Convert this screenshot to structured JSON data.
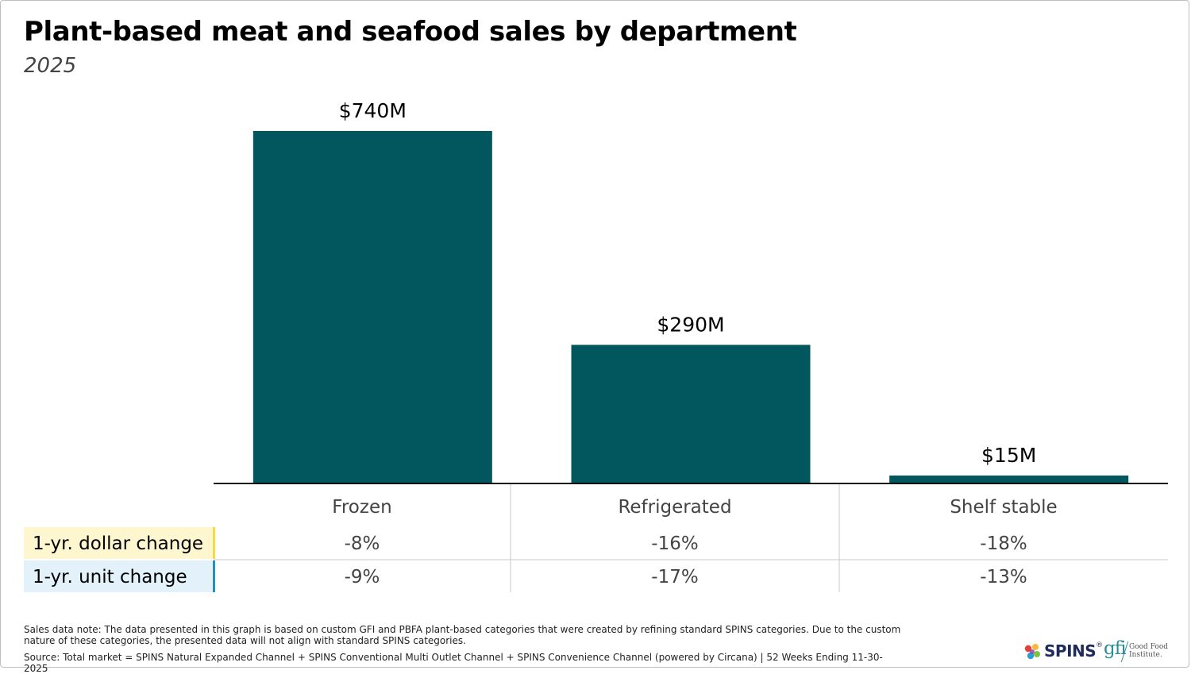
{
  "header": {
    "title": "Plant-based meat and seafood sales by department",
    "subtitle": "2025"
  },
  "chart_data": {
    "type": "bar",
    "title": "Plant-based meat and seafood sales by department",
    "subtitle": "2025",
    "categories": [
      "Frozen",
      "Refrigerated",
      "Shelf stable"
    ],
    "values": [
      740,
      290,
      15
    ],
    "value_labels": [
      "$740M",
      "$290M",
      "$15M"
    ],
    "unit": "$M",
    "xlabel": "",
    "ylabel": "",
    "ylim": [
      0,
      740
    ],
    "grid": false,
    "bar_color": "#02575f"
  },
  "table": {
    "rows": [
      {
        "label": "1-yr. dollar change",
        "values": [
          "-8%",
          "-16%",
          "-18%"
        ],
        "label_bg": "#fdf6cf",
        "accent": "#f6dd35"
      },
      {
        "label": "1-yr. unit change",
        "values": [
          "-9%",
          "-17%",
          "-13%"
        ],
        "label_bg": "#e3f1fb",
        "accent": "#1f8fc4"
      }
    ]
  },
  "footer": {
    "note": "Sales data note: The data presented in this graph is based on custom GFI and PBFA plant-based categories that were created by refining standard SPINS categories. Due to the custom nature of these categories, the presented data will not align with standard SPINS categories.",
    "source": "Source: Total market = SPINS Natural Expanded Channel + SPINS Conventional Multi Outlet Channel + SPINS Convenience Channel (powered by Circana) | 52 Weeks Ending 11-30-2025"
  },
  "logos": {
    "spins_text": "SPINS",
    "spins_reg": "®",
    "gfi_text": "gfi",
    "gfi_name": "Good Food Institute."
  }
}
